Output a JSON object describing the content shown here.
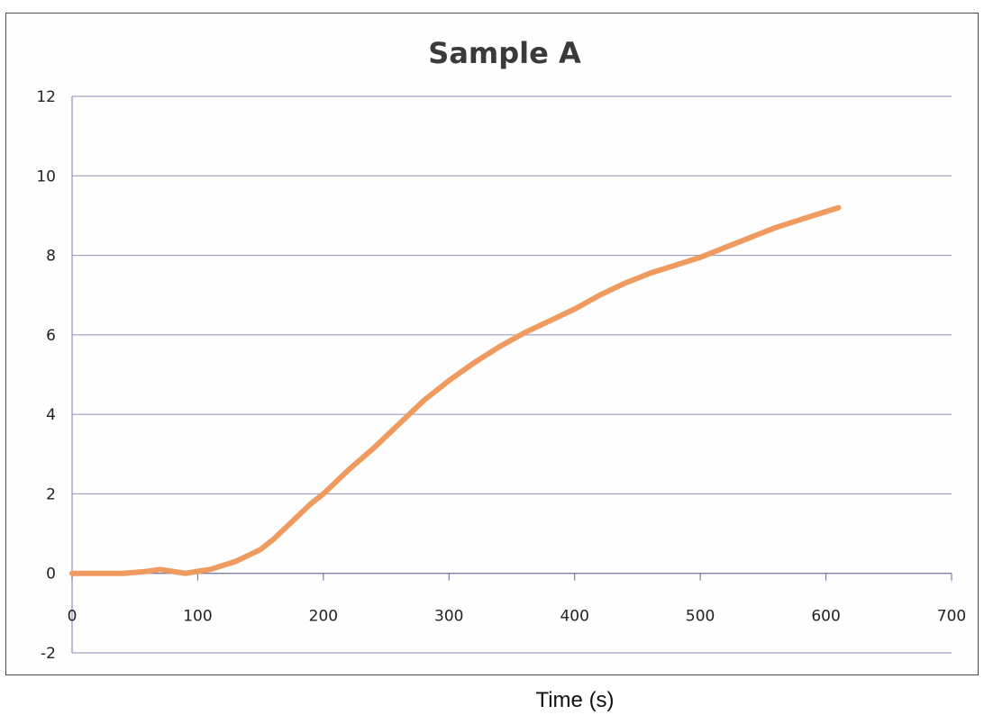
{
  "chart_data": {
    "type": "line",
    "title": "Sample A",
    "xlabel": "Time (s)",
    "ylabel": "",
    "xlim": [
      0,
      700
    ],
    "ylim": [
      -2,
      12
    ],
    "x_ticks": [
      "0",
      "100",
      "200",
      "300",
      "400",
      "500",
      "600",
      "700"
    ],
    "y_ticks": [
      "-2",
      "0",
      "2",
      "4",
      "6",
      "8",
      "10",
      "12"
    ],
    "grid": "horizontal",
    "legend": "none",
    "series": [
      {
        "color": "#ef9a5f",
        "x": [
          0,
          20,
          40,
          60,
          70,
          80,
          90,
          100,
          110,
          120,
          130,
          140,
          150,
          160,
          170,
          180,
          190,
          200,
          220,
          240,
          260,
          280,
          300,
          320,
          340,
          360,
          380,
          400,
          420,
          440,
          460,
          480,
          500,
          520,
          540,
          560,
          580,
          600,
          610
        ],
        "y": [
          0.0,
          0.0,
          0.0,
          0.05,
          0.1,
          0.05,
          0.0,
          0.05,
          0.1,
          0.2,
          0.3,
          0.45,
          0.6,
          0.85,
          1.15,
          1.45,
          1.75,
          2.0,
          2.6,
          3.15,
          3.75,
          4.35,
          4.85,
          5.3,
          5.7,
          6.05,
          6.35,
          6.65,
          7.0,
          7.3,
          7.55,
          7.75,
          7.95,
          8.2,
          8.45,
          8.7,
          8.9,
          9.1,
          9.2
        ]
      }
    ]
  }
}
